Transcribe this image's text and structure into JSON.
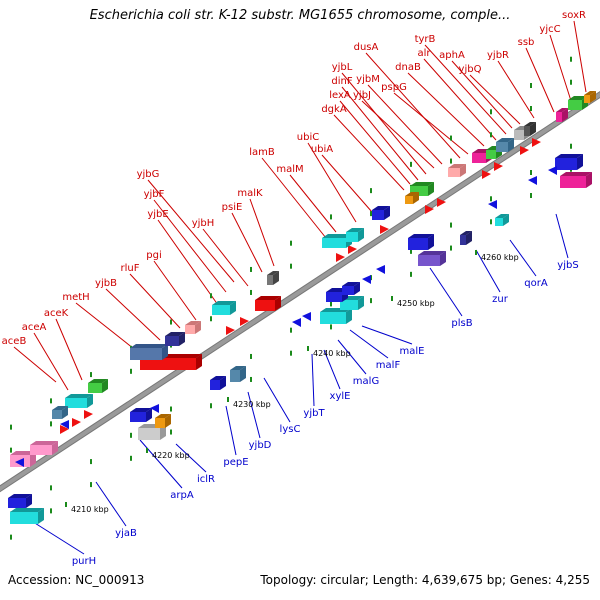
{
  "title": "Escherichia coli str. K-12 substr. MG1655 chromosome, comple...",
  "footer": {
    "accession": "Accession: NC_000913",
    "summary": "Topology: circular; Length: 4,639,675 bp; Genes: 4,255"
  },
  "colors": {
    "forward_label": "#cc0000",
    "reverse_label": "#0000cc",
    "backbone": "#9a9a9a"
  },
  "ticks": [
    "4210 kbp",
    "4220 kbp",
    "4230 kbp",
    "4240 kbp",
    "4250 kbp",
    "4260 kbp"
  ],
  "forward_labels": [
    "aceB",
    "aceA",
    "aceK",
    "metH",
    "yjbB",
    "rluF",
    "pgi",
    "yjbE",
    "yjbF",
    "yjbG",
    "yjbH",
    "psiE",
    "malK",
    "lamB",
    "malM",
    "ubiC",
    "ubiA",
    "dgkA",
    "lexA",
    "dinF",
    "yjbL",
    "yjbJ",
    "yjbM",
    "dusA",
    "pspG",
    "dnaB",
    "alr",
    "tyrB",
    "aphA",
    "yjbQ",
    "yjbR",
    "ssb",
    "yjcC",
    "soxR"
  ],
  "reverse_labels": [
    "purH",
    "yjaB",
    "arpA",
    "iclR",
    "pepE",
    "yjbD",
    "lysC",
    "yjbT",
    "xylE",
    "malG",
    "malF",
    "malE",
    "plsB",
    "zur",
    "qorA",
    "yjbS"
  ]
}
